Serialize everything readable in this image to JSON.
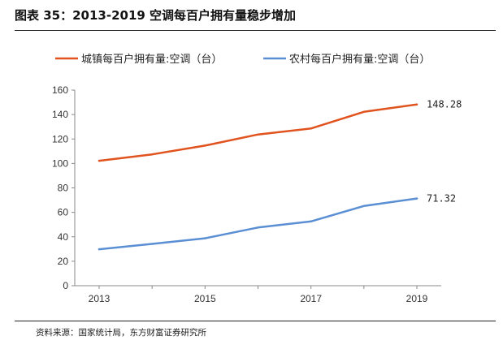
{
  "header": {
    "figure_title": "图表 35：2013-2019 空调每百户拥有量稳步增加"
  },
  "footer": {
    "source": "资料来源：国家统计局，东方财富证券研究所"
  },
  "chart_data": {
    "type": "line",
    "title": "",
    "xlabel": "",
    "ylabel": "",
    "x": [
      2013,
      2014,
      2015,
      2016,
      2017,
      2018,
      2019
    ],
    "x_tick_labels": [
      "2013",
      "2015",
      "2017",
      "2019"
    ],
    "y_tick_labels": [
      "0",
      "20",
      "40",
      "60",
      "80",
      "100",
      "120",
      "140",
      "160"
    ],
    "ylim": [
      0,
      160
    ],
    "grid": false,
    "legend_position": "top",
    "series": [
      {
        "name": "城镇每百户拥有量:空调（台）",
        "color": "#e0531f",
        "values": [
          102.2,
          107.4,
          114.6,
          123.7,
          128.6,
          142.2,
          148.28
        ],
        "end_label": "148.28"
      },
      {
        "name": "农村每百户拥有量:空调（台）",
        "color": "#5b8fd4",
        "values": [
          29.8,
          34.2,
          38.8,
          47.6,
          52.6,
          65.2,
          71.32
        ],
        "end_label": "71.32"
      }
    ]
  }
}
